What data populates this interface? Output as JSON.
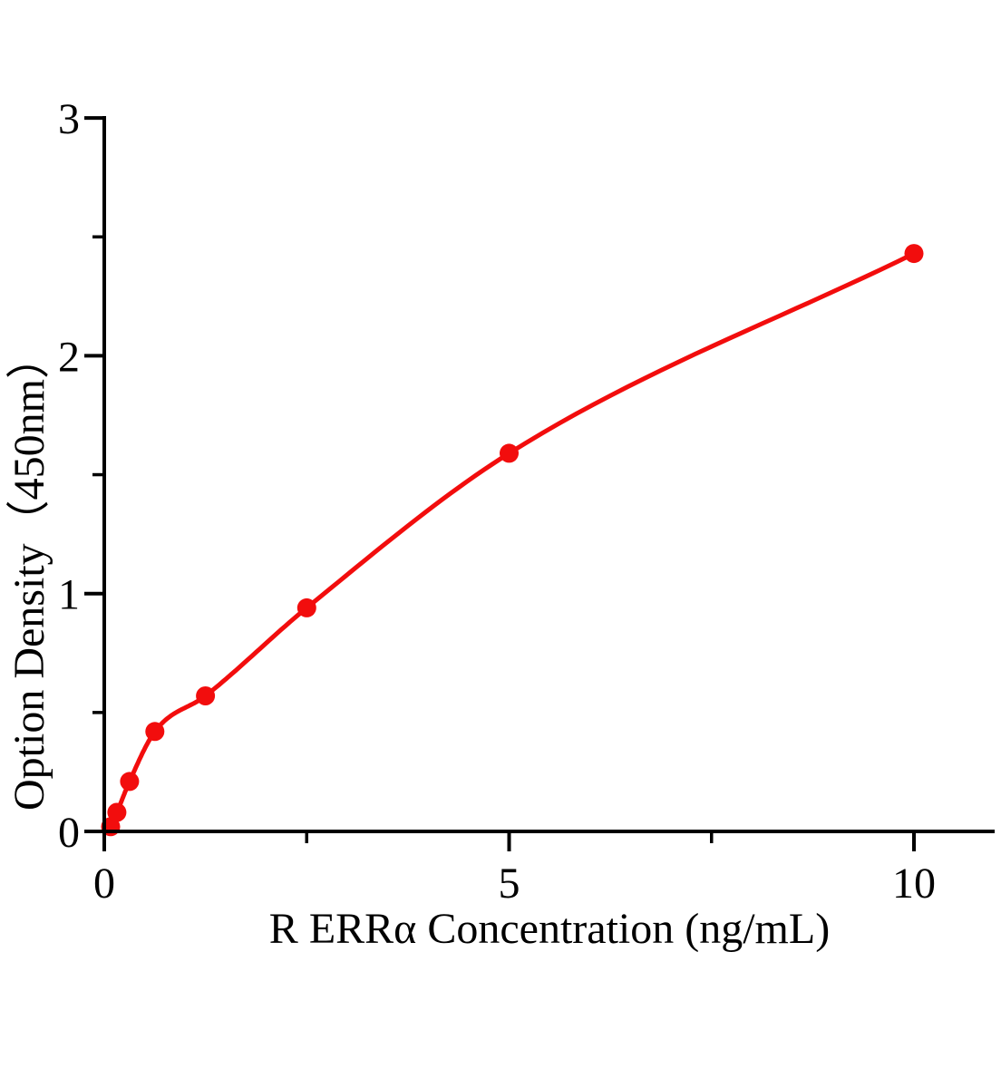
{
  "figure": {
    "background_color": "#ffffff"
  },
  "chart_data": {
    "type": "scatter",
    "title": "",
    "xlabel": "R ERRα Concentration (ng/mL)",
    "ylabel": "Option Density（450nm）",
    "legend": null,
    "grid": false,
    "xlim": [
      0,
      11
    ],
    "ylim": [
      0,
      3
    ],
    "x_major_ticks": [
      0,
      5,
      10
    ],
    "x_minor_ticks": [
      2.5,
      7.5
    ],
    "y_major_ticks": [
      0,
      1,
      2,
      3
    ],
    "y_minor_ticks": [
      0.5,
      1.5,
      2.5
    ],
    "curve_color": "#f20d0d",
    "axis_color": "#000000",
    "curve_start": {
      "x": 0,
      "od": 0
    },
    "points": [
      {
        "x": 0.078,
        "od": 0.02
      },
      {
        "x": 0.156,
        "od": 0.08
      },
      {
        "x": 0.312,
        "od": 0.21
      },
      {
        "x": 0.625,
        "od": 0.42
      },
      {
        "x": 1.25,
        "od": 0.57
      },
      {
        "x": 2.5,
        "od": 0.94
      },
      {
        "x": 5,
        "od": 1.59
      },
      {
        "x": 10,
        "od": 2.43
      }
    ]
  }
}
